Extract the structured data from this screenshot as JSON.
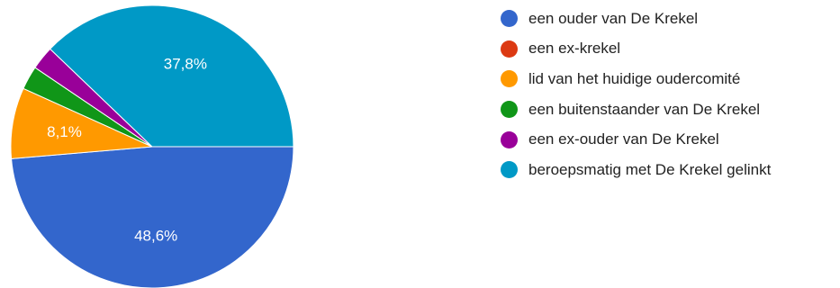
{
  "chart_data": {
    "type": "pie",
    "slices": [
      {
        "label": "een ouder van De Krekel",
        "value": 48.6,
        "display": "48,6%",
        "color": "#3366cc"
      },
      {
        "label": "een ex-krekel",
        "value": 0,
        "display": "",
        "color": "#dc3912"
      },
      {
        "label": "lid van het huidige oudercomité",
        "value": 8.1,
        "display": "8,1%",
        "color": "#ff9900"
      },
      {
        "label": "een buitenstaander van De Krekel",
        "value": 2.7,
        "display": "",
        "color": "#109618"
      },
      {
        "label": "een ex-ouder van De Krekel",
        "value": 2.7,
        "display": "",
        "color": "#990099"
      },
      {
        "label": "beroepsmatig met De Krekel gelinkt",
        "value": 37.8,
        "display": "37,8%",
        "color": "#0099c6"
      }
    ],
    "start_direction": "3 o'clock",
    "order": "clockwise",
    "legend_position": "right"
  }
}
